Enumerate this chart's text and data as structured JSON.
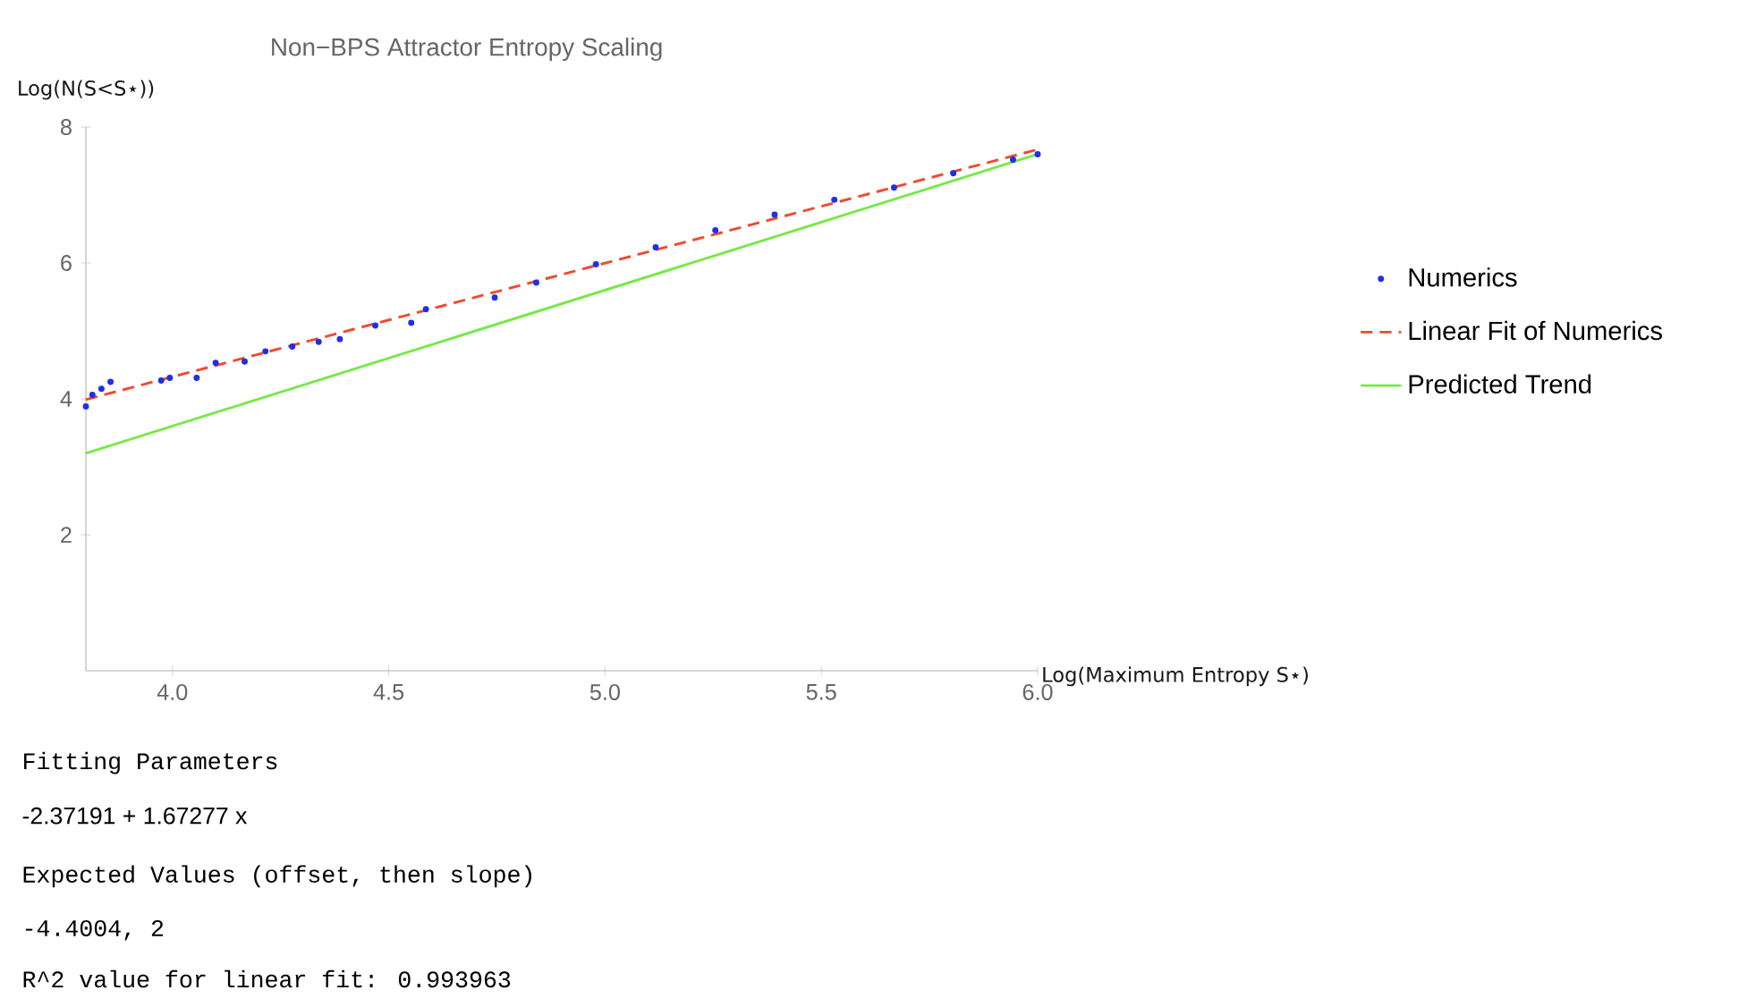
{
  "chart_data": {
    "type": "scatter",
    "title": "Non−BPS Attractor Entropy Scaling",
    "xlabel": "Log(Maximum Entropy S⋆)",
    "ylabel": "Log(N(S<S⋆))",
    "xlim": [
      3.8,
      6.0
    ],
    "ylim": [
      0,
      8
    ],
    "xticks": [
      {
        "value": 4,
        "label": "4.0"
      },
      {
        "value": 4.5,
        "label": "4.5"
      },
      {
        "value": 5,
        "label": "5.0"
      },
      {
        "value": 5.5,
        "label": "5.5"
      },
      {
        "value": 6,
        "label": "6.0"
      }
    ],
    "yticks": [
      2,
      4,
      6,
      8
    ],
    "grid": false,
    "legend": "right",
    "series": [
      {
        "name": "Numerics",
        "marker": "circle",
        "color": "#1f2fe6",
        "x": [
          3.8,
          3.815,
          3.836,
          3.857,
          3.974,
          3.994,
          4.056,
          4.1,
          4.167,
          4.215,
          4.277,
          4.338,
          4.387,
          4.469,
          4.552,
          4.586,
          4.745,
          4.841,
          4.979,
          5.117,
          5.255,
          5.392,
          5.53,
          5.668,
          5.805,
          5.943,
          6.0
        ],
        "values": [
          3.89,
          4.06,
          4.15,
          4.25,
          4.27,
          4.31,
          4.31,
          4.53,
          4.55,
          4.7,
          4.77,
          4.84,
          4.88,
          5.08,
          5.12,
          5.32,
          5.49,
          5.71,
          5.98,
          6.23,
          6.48,
          6.71,
          6.93,
          7.11,
          7.32,
          7.52,
          7.6
        ]
      },
      {
        "name": "Linear Fit of Numerics",
        "type": "line",
        "line_style": "dashed",
        "marker": "none",
        "color": "#f04a30",
        "x": [
          3.8,
          6.0
        ],
        "values": [
          3.99,
          7.67
        ]
      },
      {
        "name": "Predicted Trend",
        "type": "line",
        "line_style": "solid",
        "marker": "none",
        "color": "#78e84a",
        "x": [
          3.8,
          6.0
        ],
        "values": [
          3.2,
          7.6
        ]
      }
    ],
    "annotations": [
      "Fitting Parameters",
      "-2.37191 + 1.67277 x",
      "Expected Values (offset, then slope)",
      "-4.4004, 2",
      "R^2 value for linear fit: 0.993963"
    ]
  }
}
